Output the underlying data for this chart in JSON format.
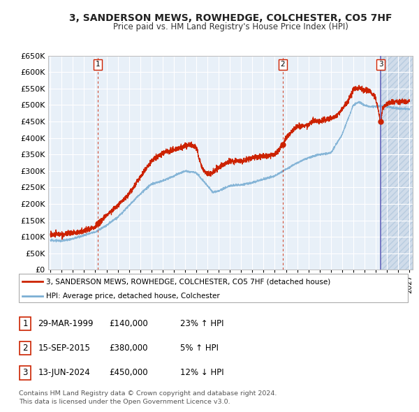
{
  "title": "3, SANDERSON MEWS, ROWHEDGE, COLCHESTER, CO5 7HF",
  "subtitle": "Price paid vs. HM Land Registry's House Price Index (HPI)",
  "ylim": [
    0,
    650000
  ],
  "yticks": [
    0,
    50000,
    100000,
    150000,
    200000,
    250000,
    300000,
    350000,
    400000,
    450000,
    500000,
    550000,
    600000,
    650000
  ],
  "xlim_start": 1994.8,
  "xlim_end": 2027.3,
  "bg_color": "#ffffff",
  "grid_color": "#cccccc",
  "chart_bg_color": "#e8f0f8",
  "hpi_line_color": "#7bafd4",
  "price_line_color": "#cc2200",
  "vline1_color": "#cc2200",
  "vline2_color": "#cc2200",
  "vline3_color": "#6666bb",
  "sale1_date": 1999.24,
  "sale1_price": 140000,
  "sale2_date": 2015.72,
  "sale2_price": 380000,
  "sale3_date": 2024.45,
  "sale3_price": 450000,
  "legend_label_red": "3, SANDERSON MEWS, ROWHEDGE, COLCHESTER, CO5 7HF (detached house)",
  "legend_label_blue": "HPI: Average price, detached house, Colchester",
  "table_rows": [
    [
      "1",
      "29-MAR-1999",
      "£140,000",
      "23% ↑ HPI"
    ],
    [
      "2",
      "15-SEP-2015",
      "£380,000",
      "5% ↑ HPI"
    ],
    [
      "3",
      "13-JUN-2024",
      "£450,000",
      "12% ↓ HPI"
    ]
  ],
  "footer": "Contains HM Land Registry data © Crown copyright and database right 2024.\nThis data is licensed under the Open Government Licence v3.0."
}
